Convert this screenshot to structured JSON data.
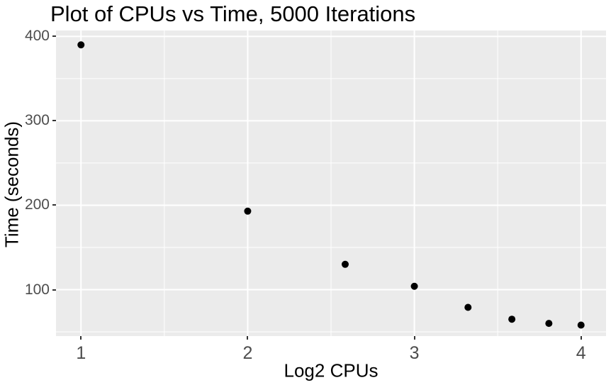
{
  "chart_data": {
    "type": "scatter",
    "title": "Plot of CPUs vs Time, 5000 Iterations",
    "xlabel": "Log2 CPUs",
    "ylabel": "Time (seconds)",
    "x": [
      1,
      2,
      2.585,
      3,
      3.322,
      3.585,
      3.807,
      4
    ],
    "y": [
      390,
      193,
      130,
      104,
      79,
      65,
      60,
      58
    ],
    "xlim": [
      0.85,
      4.15
    ],
    "ylim": [
      45,
      407
    ],
    "x_ticks": [
      "1",
      "2",
      "3",
      "4"
    ],
    "x_tick_values": [
      1,
      2,
      3,
      4
    ],
    "y_ticks": [
      "100",
      "200",
      "300",
      "400"
    ],
    "y_tick_values": [
      100,
      200,
      300,
      400
    ],
    "x_minor": [
      1.5,
      2.5,
      3.5
    ],
    "y_minor": [
      50,
      150,
      250,
      350
    ],
    "grid": true,
    "legend": "none",
    "point_radius": 5,
    "colors": {
      "panel_bg": "#EBEBEB",
      "grid": "#FFFFFF",
      "point": "#000000",
      "tick_mark": "#333333",
      "tick_label": "#4D4D4D",
      "title": "#000000",
      "axis_title": "#000000"
    }
  }
}
